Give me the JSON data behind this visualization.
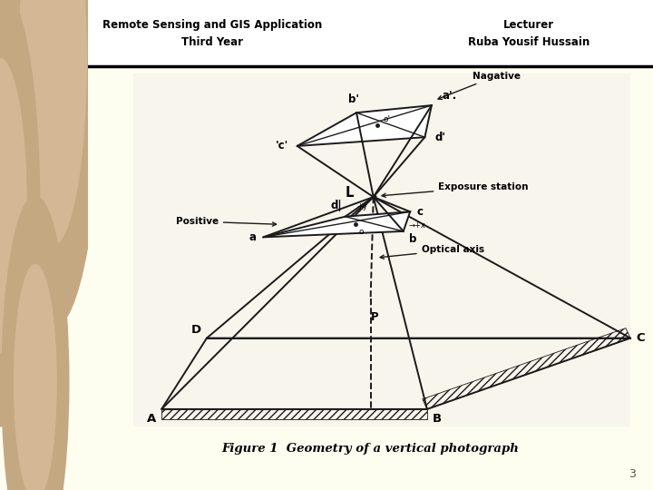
{
  "title_left": "Remote Sensing and GIS Application\nThird Year",
  "title_right": "Lecturer\nRuba Yousif Hussain",
  "figure_caption": "Figure 1  Geometry of a vertical photograph",
  "page_number": "3",
  "bg_color": "#FDFDF0",
  "diagram_bg": "#F5F5E8",
  "left_panel_color": "#D4B896",
  "left_panel_dark": "#C4A882",
  "line_color": "#1a1a1a",
  "text_color": "#000000",
  "header_bg": "#FFFFFF"
}
